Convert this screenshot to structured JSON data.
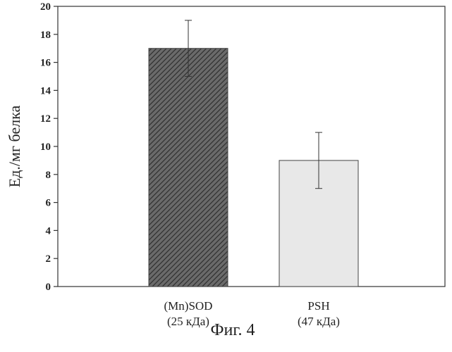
{
  "chart_data": {
    "type": "bar",
    "title": "",
    "caption": "Фиг. 4",
    "xlabel": "",
    "ylabel": "Ед./мг белка",
    "ylim": [
      0,
      20
    ],
    "yticks": [
      0,
      2,
      4,
      6,
      8,
      10,
      12,
      14,
      16,
      18,
      20
    ],
    "grid": false,
    "categories": [
      {
        "line1": "(Mn)SOD",
        "line2": "(25 кДа)"
      },
      {
        "line1": "PSH",
        "line2": "(47 кДа)"
      }
    ],
    "values": [
      17,
      9
    ],
    "errors": [
      2,
      2
    ],
    "bar_styles": [
      {
        "fill": "#5a5a5a",
        "pattern": "diagonal-hatch",
        "hatch_color": "#2a2a2a"
      },
      {
        "fill": "#e8e8e8",
        "pattern": "none",
        "hatch_color": ""
      }
    ],
    "axis_color": "#333333"
  }
}
